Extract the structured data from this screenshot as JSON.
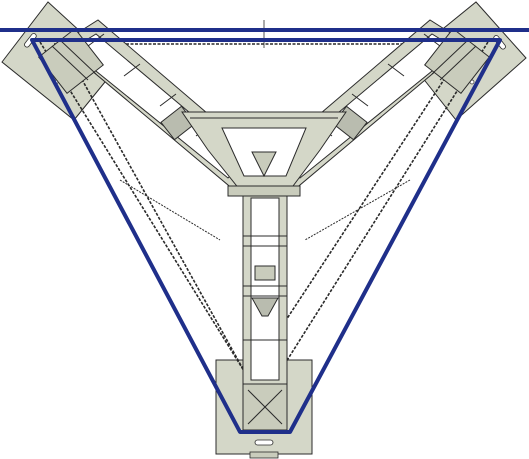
{
  "drawing": {
    "view": "top view",
    "colors": {
      "background": "#ffffff",
      "frame_fill": "#d4d7c8",
      "frame_stroke": "#2b2b2b",
      "plate_fill": "#c9ccbc",
      "belt": "#1f2f8a",
      "belt_dark": "#0e1a5e",
      "chain": "#2a2a2a",
      "panel_fill": "#b9bcaf"
    },
    "components": [
      {
        "id": "corner-plate-left",
        "icon": "mounting-plate"
      },
      {
        "id": "corner-plate-right",
        "icon": "mounting-plate"
      },
      {
        "id": "corner-plate-bottom",
        "icon": "mounting-plate"
      },
      {
        "id": "arm-left",
        "icon": "truss-arm"
      },
      {
        "id": "arm-right",
        "icon": "truss-arm"
      },
      {
        "id": "arm-bottom",
        "icon": "truss-arm"
      },
      {
        "id": "center-hub",
        "icon": "hub"
      },
      {
        "id": "drive-belt",
        "icon": "belt-loop"
      },
      {
        "id": "chain-loop",
        "icon": "chain"
      }
    ]
  }
}
